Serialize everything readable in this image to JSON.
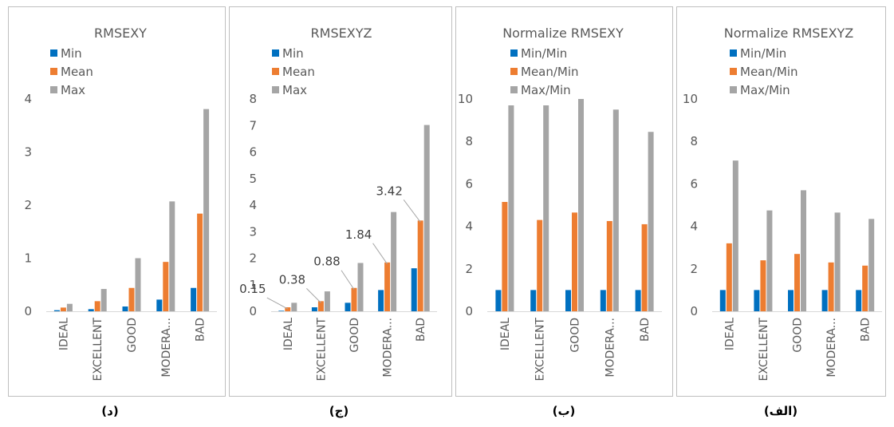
{
  "chart_data": [
    {
      "type": "bar",
      "title": "RMSEXY",
      "caption": "(د)",
      "categories": [
        "IDEAL",
        "EXCELLENT",
        "GOOD",
        "MODERA...",
        "BAD"
      ],
      "series": [
        {
          "name": "Min",
          "color": "#0070c0",
          "values": [
            0.02,
            0.04,
            0.09,
            0.22,
            0.44
          ]
        },
        {
          "name": "Mean",
          "color": "#ed7d31",
          "values": [
            0.07,
            0.19,
            0.44,
            0.93,
            1.84
          ]
        },
        {
          "name": "Max",
          "color": "#a5a5a5",
          "values": [
            0.14,
            0.42,
            1.0,
            2.07,
            3.81
          ]
        }
      ],
      "ylim": [
        0,
        4
      ],
      "yticks": [
        0,
        1,
        2,
        3,
        4
      ],
      "annotations": []
    },
    {
      "type": "bar",
      "title": "RMSEXYZ",
      "caption": "(ج)",
      "categories": [
        "IDEAL",
        "EXCELLENT",
        "GOOD",
        "MODERA...",
        "BAD"
      ],
      "series": [
        {
          "name": "Min",
          "color": "#0070c0",
          "values": [
            0.02,
            0.15,
            0.32,
            0.8,
            1.62
          ]
        },
        {
          "name": "Mean",
          "color": "#ed7d31",
          "values": [
            0.15,
            0.38,
            0.88,
            1.84,
            3.42
          ]
        },
        {
          "name": "Max",
          "color": "#a5a5a5",
          "values": [
            0.32,
            0.75,
            1.82,
            3.74,
            7.02
          ]
        }
      ],
      "ylim": [
        0,
        8
      ],
      "yticks": [
        0,
        1,
        2,
        3,
        4,
        5,
        6,
        7,
        8
      ],
      "annotations": [
        {
          "label": "0.15",
          "category": 0
        },
        {
          "label": "0.38",
          "category": 1
        },
        {
          "label": "0.88",
          "category": 2
        },
        {
          "label": "1.84",
          "category": 3
        },
        {
          "label": "3.42",
          "category": 4
        }
      ]
    },
    {
      "type": "bar",
      "title": "Normalize RMSEXY",
      "caption": "(ب)",
      "categories": [
        "IDEAL",
        "EXCELLENT",
        "GOOD",
        "MODERA...",
        "BAD"
      ],
      "series": [
        {
          "name": "Min/Min",
          "color": "#0070c0",
          "values": [
            1,
            1,
            1,
            1,
            1
          ]
        },
        {
          "name": "Mean/Min",
          "color": "#ed7d31",
          "values": [
            5.15,
            4.3,
            4.65,
            4.25,
            4.1
          ]
        },
        {
          "name": "Max/Min",
          "color": "#a5a5a5",
          "values": [
            9.7,
            9.7,
            10.0,
            9.5,
            8.45
          ]
        }
      ],
      "ylim": [
        0,
        10
      ],
      "yticks": [
        0,
        2,
        4,
        6,
        8,
        10
      ],
      "annotations": []
    },
    {
      "type": "bar",
      "title": "Normalize RMSEXYZ",
      "caption": "(الف)",
      "categories": [
        "IDEAL",
        "EXCELLENT",
        "GOOD",
        "MODERA...",
        "BAD"
      ],
      "series": [
        {
          "name": "Min/Min",
          "color": "#0070c0",
          "values": [
            1,
            1,
            1,
            1,
            1
          ]
        },
        {
          "name": "Mean/Min",
          "color": "#ed7d31",
          "values": [
            3.2,
            2.4,
            2.7,
            2.3,
            2.15
          ]
        },
        {
          "name": "Max/Min",
          "color": "#a5a5a5",
          "values": [
            7.1,
            4.75,
            5.7,
            4.65,
            4.35
          ]
        }
      ],
      "ylim": [
        0,
        10
      ],
      "yticks": [
        0,
        2,
        4,
        6,
        8,
        10
      ],
      "annotations": []
    }
  ]
}
